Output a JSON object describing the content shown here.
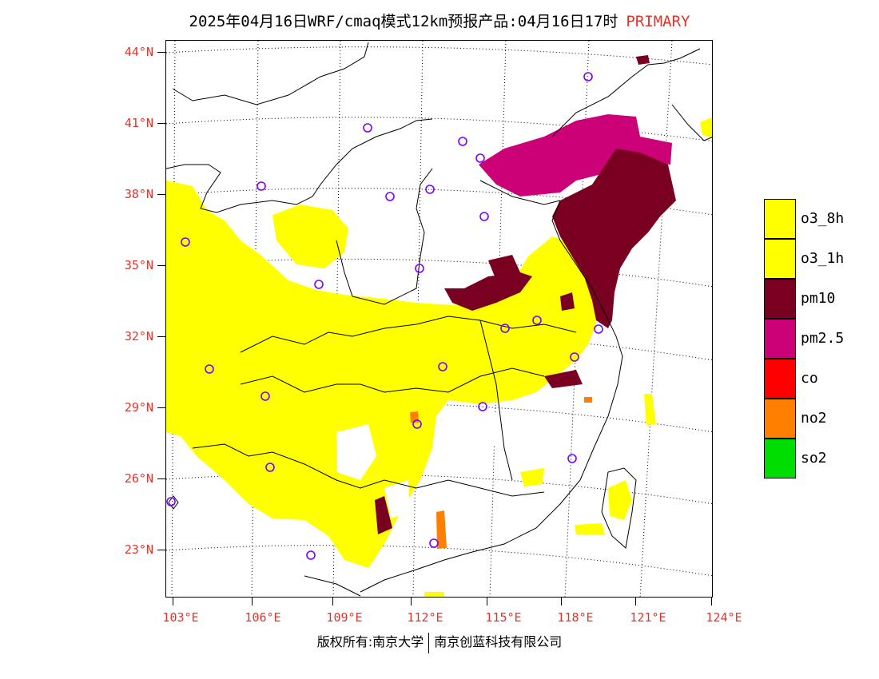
{
  "header": {
    "title": "2025年04月16日WRF/cmaq模式12km预报产品:04月16日17时",
    "primary_label": "PRIMARY"
  },
  "axes": {
    "lat_labels": [
      "44°N",
      "41°N",
      "38°N",
      "35°N",
      "32°N",
      "29°N",
      "26°N",
      "23°N"
    ],
    "lon_labels": [
      "103°E",
      "106°E",
      "109°E",
      "112°E",
      "115°E",
      "118°E",
      "121°E",
      "124°E"
    ]
  },
  "legend": {
    "items": [
      {
        "label": "o3_8h",
        "color": "#ffff00"
      },
      {
        "label": "o3_1h",
        "color": "#ffff00"
      },
      {
        "label": "pm10",
        "color": "#7a0022"
      },
      {
        "label": "pm2.5",
        "color": "#cc0077"
      },
      {
        "label": "co",
        "color": "#ff0000"
      },
      {
        "label": "no2",
        "color": "#ff7f00"
      },
      {
        "label": "so2",
        "color": "#00dd00"
      }
    ]
  },
  "footer": {
    "left": "版权所有:南京大学",
    "right": "南京创蓝科技有限公司"
  },
  "colors": {
    "axis_label": "#e0352b",
    "ozone": "#ffff00",
    "pm10": "#7a0022",
    "pm25": "#cc0077",
    "no2": "#ff7f00",
    "station_marker": "#7b00ff"
  }
}
